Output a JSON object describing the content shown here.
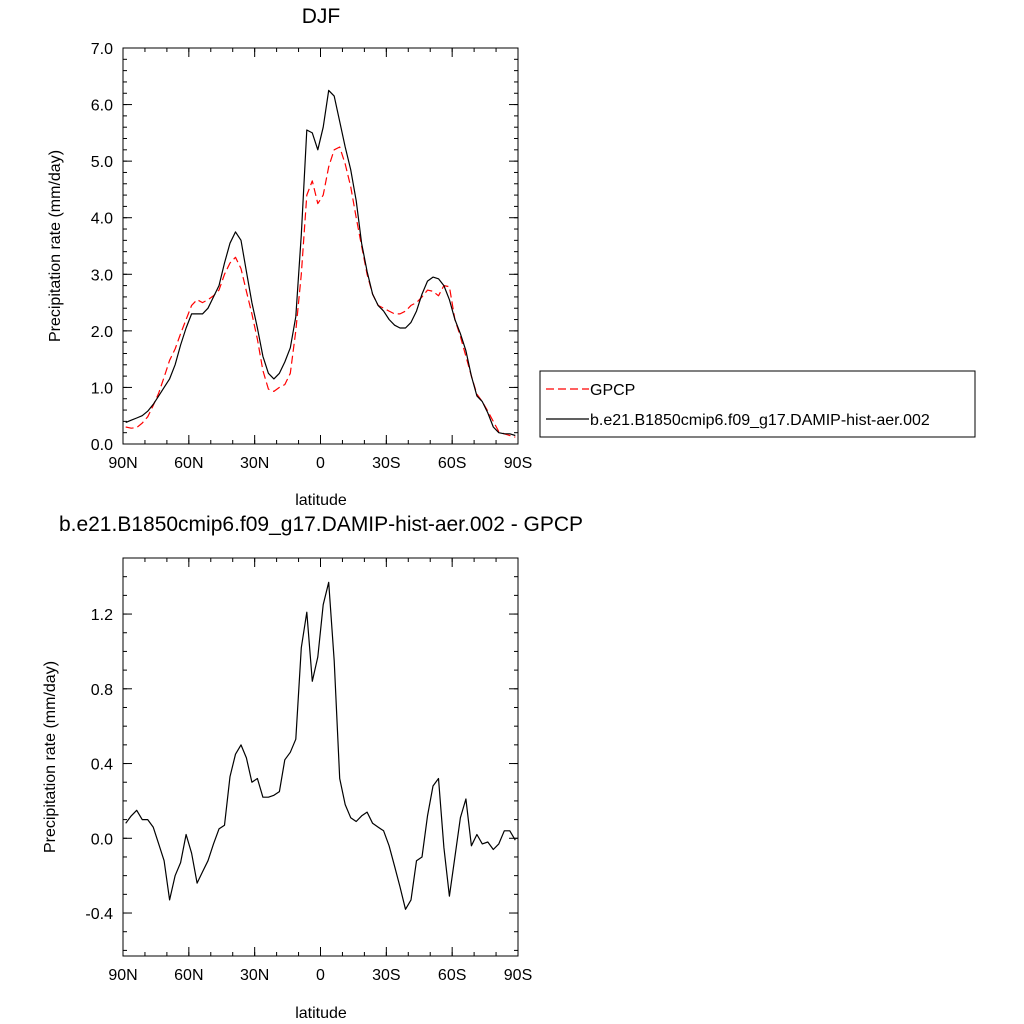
{
  "chart_data": [
    {
      "type": "line",
      "title": "DJF",
      "xlabel": "latitude",
      "ylabel": "Precipitation rate (mm/day)",
      "xlim": [
        90,
        -90
      ],
      "ylim": [
        0,
        7
      ],
      "x_ticks": [
        90,
        60,
        30,
        0,
        -30,
        -60,
        -90
      ],
      "x_tick_labels": [
        "90N",
        "60N",
        "30N",
        "0",
        "30S",
        "60S",
        "90S"
      ],
      "y_ticks": [
        0,
        1,
        2,
        3,
        4,
        5,
        6,
        7
      ],
      "y_tick_labels": [
        "0.0",
        "1.0",
        "2.0",
        "3.0",
        "4.0",
        "5.0",
        "6.0",
        "7.0"
      ],
      "grid": false,
      "legend_position": "right",
      "series": [
        {
          "name": "GPCP",
          "color": "#ff0000",
          "dash": "dashed",
          "x": [
            88.75,
            86.25,
            83.75,
            81.25,
            78.75,
            76.25,
            73.75,
            71.25,
            68.75,
            66.25,
            63.75,
            61.25,
            58.75,
            56.25,
            53.75,
            51.25,
            48.75,
            46.25,
            43.75,
            41.25,
            38.75,
            36.25,
            33.75,
            31.25,
            28.75,
            26.25,
            23.75,
            21.25,
            18.75,
            16.25,
            13.75,
            11.25,
            8.75,
            6.25,
            3.75,
            1.25,
            -1.25,
            -3.75,
            -6.25,
            -8.75,
            -11.25,
            -13.75,
            -16.25,
            -18.75,
            -21.25,
            -23.75,
            -26.25,
            -28.75,
            -31.25,
            -33.75,
            -36.25,
            -38.75,
            -41.25,
            -43.75,
            -46.25,
            -48.75,
            -51.25,
            -53.75,
            -56.25,
            -58.75,
            -61.25,
            -63.75,
            -66.25,
            -68.75,
            -71.25,
            -73.75,
            -76.25,
            -78.75,
            -81.25,
            -83.75,
            -86.25,
            -88.75
          ],
          "y": [
            0.3,
            0.28,
            0.29,
            0.37,
            0.48,
            0.68,
            0.9,
            1.18,
            1.48,
            1.68,
            1.95,
            2.2,
            2.45,
            2.55,
            2.5,
            2.55,
            2.62,
            2.72,
            3.0,
            3.2,
            3.3,
            3.1,
            2.7,
            2.3,
            1.85,
            1.3,
            0.97,
            0.93,
            1.0,
            1.05,
            1.25,
            2.0,
            3.0,
            4.4,
            4.65,
            4.25,
            4.4,
            4.9,
            5.2,
            5.25,
            4.95,
            4.55,
            4.0,
            3.5,
            3.0,
            2.65,
            2.45,
            2.4,
            2.35,
            2.3,
            2.3,
            2.35,
            2.45,
            2.5,
            2.6,
            2.72,
            2.7,
            2.62,
            2.8,
            2.78,
            2.2,
            1.9,
            1.55,
            1.2,
            0.88,
            0.75,
            0.58,
            0.4,
            0.22,
            0.18,
            0.15,
            0.12
          ]
        },
        {
          "name": "b.e21.B1850cmip6.f09_g17.DAMIP-hist-aer.002",
          "color": "#000000",
          "dash": "solid",
          "x": [
            88.75,
            86.25,
            83.75,
            81.25,
            78.75,
            76.25,
            73.75,
            71.25,
            68.75,
            66.25,
            63.75,
            61.25,
            58.75,
            56.25,
            53.75,
            51.25,
            48.75,
            46.25,
            43.75,
            41.25,
            38.75,
            36.25,
            33.75,
            31.25,
            28.75,
            26.25,
            23.75,
            21.25,
            18.75,
            16.25,
            13.75,
            11.25,
            8.75,
            6.25,
            3.75,
            1.25,
            -1.25,
            -3.75,
            -6.25,
            -8.75,
            -11.25,
            -13.75,
            -16.25,
            -18.75,
            -21.25,
            -23.75,
            -26.25,
            -28.75,
            -31.25,
            -33.75,
            -36.25,
            -38.75,
            -41.25,
            -43.75,
            -46.25,
            -48.75,
            -51.25,
            -53.75,
            -56.25,
            -58.75,
            -61.25,
            -63.75,
            -66.25,
            -68.75,
            -71.25,
            -73.75,
            -76.25,
            -78.75,
            -81.25,
            -83.75,
            -86.25,
            -88.75
          ],
          "y": [
            0.38,
            0.42,
            0.46,
            0.5,
            0.58,
            0.7,
            0.85,
            1.0,
            1.15,
            1.4,
            1.75,
            2.05,
            2.3,
            2.3,
            2.3,
            2.4,
            2.6,
            2.8,
            3.2,
            3.55,
            3.75,
            3.6,
            3.05,
            2.5,
            2.05,
            1.55,
            1.25,
            1.15,
            1.25,
            1.45,
            1.7,
            2.25,
            3.7,
            5.55,
            5.5,
            5.2,
            5.6,
            6.25,
            6.15,
            5.7,
            5.25,
            4.85,
            4.3,
            3.55,
            3.05,
            2.65,
            2.45,
            2.35,
            2.2,
            2.1,
            2.05,
            2.05,
            2.15,
            2.35,
            2.65,
            2.88,
            2.95,
            2.92,
            2.8,
            2.55,
            2.2,
            1.95,
            1.65,
            1.2,
            0.85,
            0.75,
            0.55,
            0.3,
            0.2,
            0.18,
            0.18,
            0.15
          ]
        }
      ]
    },
    {
      "type": "line",
      "title": "b.e21.B1850cmip6.f09_g17.DAMIP-hist-aer.002 - GPCP",
      "xlabel": "latitude",
      "ylabel": "Precipitation rate (mm/day)",
      "xlim": [
        90,
        -90
      ],
      "ylim": [
        -0.63,
        1.5
      ],
      "x_ticks": [
        90,
        60,
        30,
        0,
        -30,
        -60,
        -90
      ],
      "x_tick_labels": [
        "90N",
        "60N",
        "30N",
        "0",
        "30S",
        "60S",
        "90S"
      ],
      "y_ticks": [
        -0.4,
        0,
        0.4,
        0.8,
        1.2
      ],
      "y_tick_labels": [
        "-0.4",
        "0.0",
        "0.4",
        "0.8",
        "1.2"
      ],
      "grid": false,
      "series": [
        {
          "color": "#000000",
          "dash": "solid",
          "x": [
            88.75,
            86.25,
            83.75,
            81.25,
            78.75,
            76.25,
            73.75,
            71.25,
            68.75,
            66.25,
            63.75,
            61.25,
            58.75,
            56.25,
            53.75,
            51.25,
            48.75,
            46.25,
            43.75,
            41.25,
            38.75,
            36.25,
            33.75,
            31.25,
            28.75,
            26.25,
            23.75,
            21.25,
            18.75,
            16.25,
            13.75,
            11.25,
            8.75,
            6.25,
            3.75,
            1.25,
            -1.25,
            -3.75,
            -6.25,
            -8.75,
            -11.25,
            -13.75,
            -16.25,
            -18.75,
            -21.25,
            -23.75,
            -26.25,
            -28.75,
            -31.25,
            -33.75,
            -36.25,
            -38.75,
            -41.25,
            -43.75,
            -46.25,
            -48.75,
            -51.25,
            -53.75,
            -56.25,
            -58.75,
            -61.25,
            -63.75,
            -66.25,
            -68.75,
            -71.25,
            -73.75,
            -76.25,
            -78.75,
            -81.25,
            -83.75,
            -86.25,
            -88.75
          ],
          "y": [
            0.08,
            0.12,
            0.15,
            0.1,
            0.1,
            0.06,
            -0.03,
            -0.12,
            -0.33,
            -0.2,
            -0.13,
            0.02,
            -0.08,
            -0.24,
            -0.18,
            -0.12,
            -0.03,
            0.05,
            0.07,
            0.33,
            0.45,
            0.5,
            0.43,
            0.3,
            0.32,
            0.22,
            0.22,
            0.23,
            0.25,
            0.42,
            0.46,
            0.53,
            1.02,
            1.21,
            0.84,
            0.97,
            1.25,
            1.37,
            0.95,
            0.32,
            0.18,
            0.11,
            0.09,
            0.12,
            0.14,
            0.08,
            0.06,
            0.04,
            -0.04,
            -0.15,
            -0.26,
            -0.38,
            -0.33,
            -0.12,
            -0.1,
            0.12,
            0.28,
            0.32,
            -0.05,
            -0.31,
            -0.1,
            0.11,
            0.21,
            -0.04,
            0.02,
            -0.03,
            -0.02,
            -0.06,
            -0.03,
            0.04,
            0.04,
            -0.01
          ]
        }
      ]
    }
  ]
}
